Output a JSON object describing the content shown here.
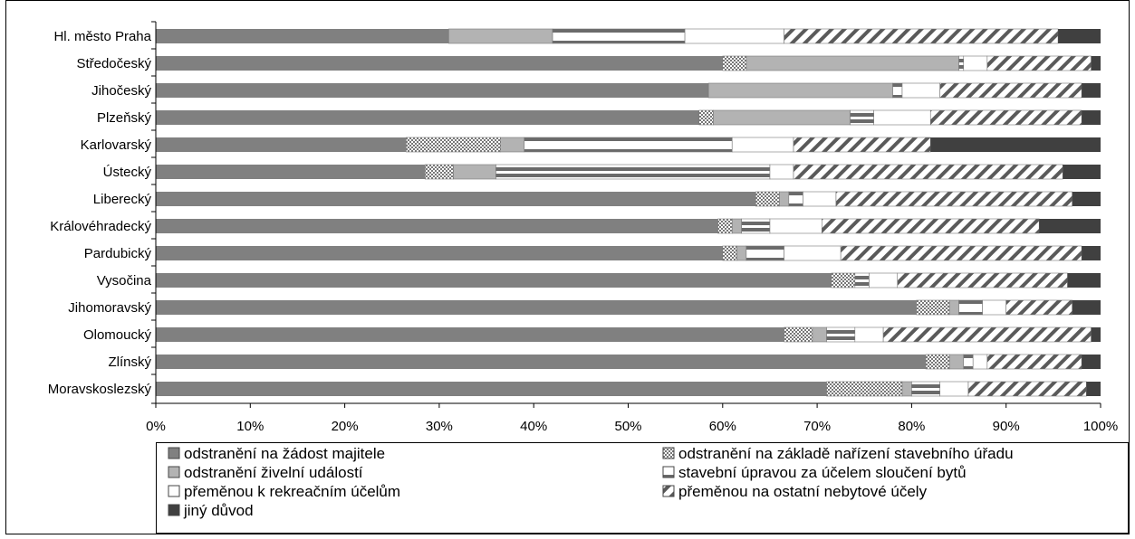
{
  "chart_data": {
    "type": "bar",
    "orientation": "horizontal",
    "stacked": "percent",
    "categories": [
      "Hl. město Praha",
      "Středočeský",
      "Jihočeský",
      "Plzeňský",
      "Karlovarský",
      "Ústecký",
      "Liberecký",
      "Královéhradecký",
      "Pardubický",
      "Vysočina",
      "Jihomoravský",
      "Olomoucký",
      "Zlínský",
      "Moravskoslezský"
    ],
    "series": [
      {
        "name": "odstranění na žádost majitele",
        "color": "#808080",
        "pattern": "solid-gray",
        "values": [
          31.0,
          60.0,
          58.5,
          57.5,
          26.5,
          28.5,
          63.5,
          59.5,
          60.0,
          71.5,
          80.5,
          66.5,
          81.5,
          71.0
        ]
      },
      {
        "name": "odstranění na základě nařízení stavebního úřadu",
        "color": "#ffffff",
        "pattern": "checker",
        "values": [
          0.0,
          2.5,
          0.0,
          1.5,
          10.0,
          3.0,
          2.5,
          1.5,
          1.5,
          2.5,
          3.5,
          3.0,
          2.5,
          8.0
        ]
      },
      {
        "name": "odstranění živelní událostí",
        "color": "#b3b3b3",
        "pattern": "solid-light-gray",
        "values": [
          11.0,
          22.5,
          19.5,
          14.5,
          2.5,
          4.5,
          1.0,
          1.0,
          1.0,
          0.0,
          1.0,
          1.5,
          1.5,
          1.0
        ]
      },
      {
        "name": "stavební úpravou za účelem sloučení bytů",
        "color": "#ffffff",
        "pattern": "horizontal-lines",
        "values": [
          14.0,
          0.5,
          1.0,
          2.5,
          22.0,
          29.0,
          1.5,
          3.0,
          4.0,
          1.5,
          2.5,
          3.0,
          1.0,
          3.0
        ]
      },
      {
        "name": "přeměnou k rekreačním účelům",
        "color": "#ffffff",
        "pattern": "blank",
        "values": [
          10.5,
          2.5,
          4.0,
          6.0,
          6.5,
          2.5,
          3.5,
          5.5,
          6.0,
          3.0,
          2.5,
          3.0,
          1.5,
          3.0
        ]
      },
      {
        "name": "přeměnou na ostatní nebytové účely",
        "color": "#ffffff",
        "pattern": "diagonal",
        "values": [
          29.0,
          11.0,
          15.0,
          16.0,
          14.5,
          28.5,
          25.0,
          23.0,
          25.5,
          18.0,
          7.0,
          22.0,
          10.0,
          12.5
        ]
      },
      {
        "name": "jiný důvod",
        "color": "#404040",
        "pattern": "solid-dark",
        "values": [
          4.5,
          1.0,
          2.0,
          2.0,
          18.0,
          4.0,
          3.0,
          6.5,
          2.0,
          3.5,
          3.0,
          1.0,
          2.0,
          1.5
        ]
      }
    ],
    "xlim": [
      0,
      100
    ],
    "x_ticks": [
      "0%",
      "10%",
      "20%",
      "30%",
      "40%",
      "50%",
      "60%",
      "70%",
      "80%",
      "90%",
      "100%"
    ],
    "title": "",
    "xlabel": "",
    "ylabel": "",
    "grid": false,
    "legend_position": "bottom"
  }
}
